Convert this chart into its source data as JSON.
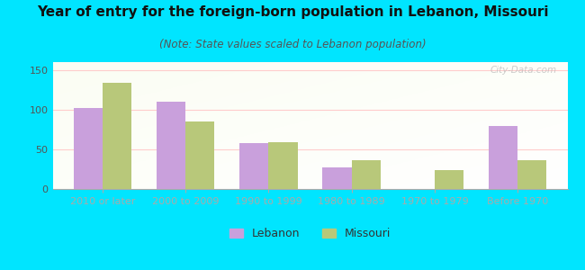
{
  "title": "Year of entry for the foreign-born population in Lebanon, Missouri",
  "subtitle": "(Note: State values scaled to Lebanon population)",
  "categories": [
    "2010 or later",
    "2000 to 2009",
    "1990 to 1999",
    "1980 to 1989",
    "1970 to 1979",
    "Before 1970"
  ],
  "lebanon_values": [
    102,
    110,
    58,
    27,
    0,
    80
  ],
  "missouri_values": [
    134,
    85,
    59,
    36,
    24,
    36
  ],
  "lebanon_color": "#c9a0dc",
  "missouri_color": "#b8c87a",
  "bg_color": "#00e5ff",
  "ylim": [
    0,
    160
  ],
  "yticks": [
    0,
    50,
    100,
    150
  ],
  "bar_width": 0.35,
  "title_fontsize": 11,
  "subtitle_fontsize": 8.5,
  "tick_fontsize": 8,
  "legend_fontsize": 9,
  "watermark": "City-Data.com"
}
